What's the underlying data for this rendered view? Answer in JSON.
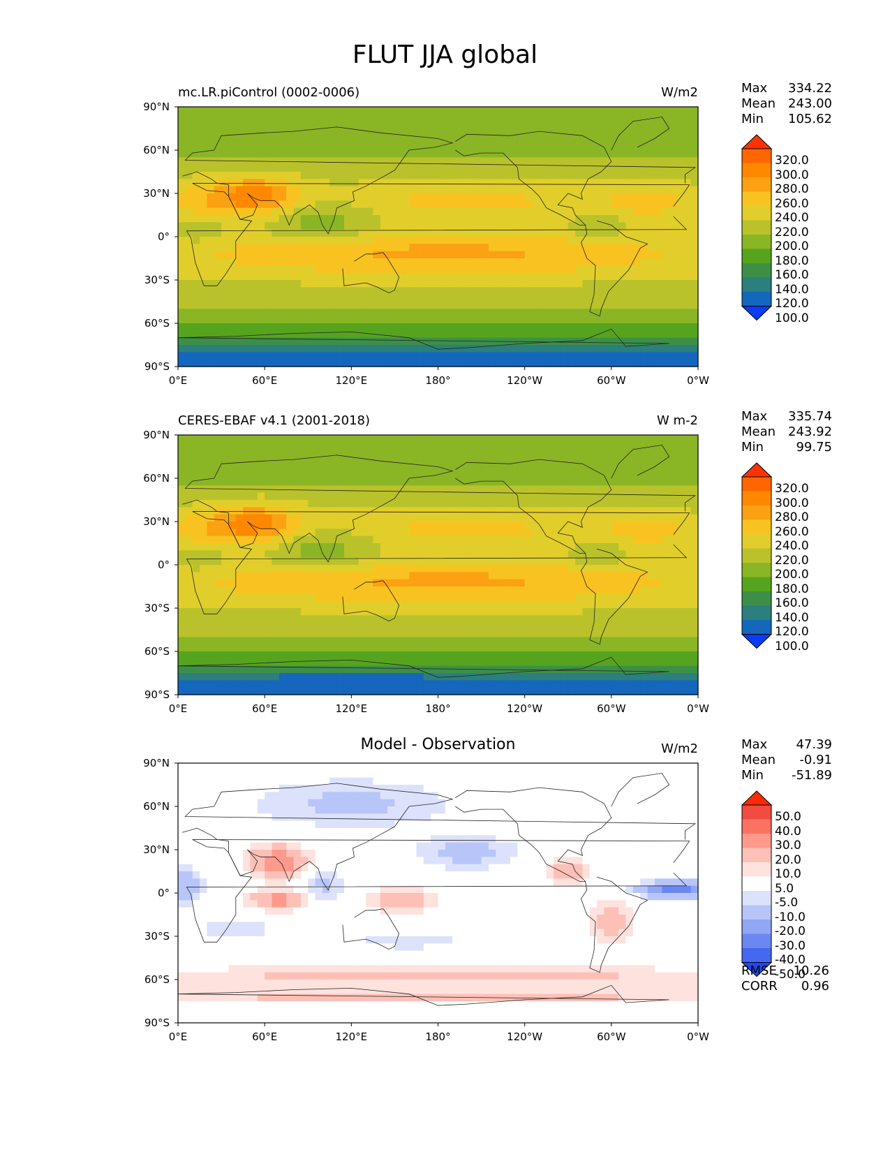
{
  "figure": {
    "title": "FLUT JJA global",
    "lat_ticks": [
      "90°N",
      "60°N",
      "30°N",
      "0°",
      "30°S",
      "60°S",
      "90°S"
    ],
    "lon_ticks": [
      "0°E",
      "60°E",
      "120°E",
      "180°",
      "120°W",
      "60°W",
      "0°W"
    ]
  },
  "panels": [
    {
      "title_left": "mc.LR.piControl (0002-0006)",
      "title_center": "",
      "units": "W/m2",
      "stats": {
        "max_label": "Max",
        "max": "334.22",
        "mean_label": "Mean",
        "mean": "243.00",
        "min_label": "Min",
        "min": "105.62"
      },
      "colorbar": {
        "levels": [
          "320.0",
          "300.0",
          "280.0",
          "260.0",
          "240.0",
          "220.0",
          "200.0",
          "180.0",
          "160.0",
          "140.0",
          "120.0",
          "100.0"
        ],
        "colors": [
          "#ff3300",
          "#ff6600",
          "#ff8800",
          "#fba112",
          "#f8c320",
          "#e1ce2a",
          "#b9c22a",
          "#8ab525",
          "#56a41e",
          "#3d8f48",
          "#2b7f7c",
          "#1467bd",
          "#0a3cf5"
        ]
      },
      "map_style": "model"
    },
    {
      "title_left": "CERES-EBAF v4.1 (2001-2018)",
      "title_center": "",
      "units": "W m-2",
      "stats": {
        "max_label": "Max",
        "max": "335.74",
        "mean_label": "Mean",
        "mean": "243.92",
        "min_label": "Min",
        "min": "99.75"
      },
      "colorbar": {
        "levels": [
          "320.0",
          "300.0",
          "280.0",
          "260.0",
          "240.0",
          "220.0",
          "200.0",
          "180.0",
          "160.0",
          "140.0",
          "120.0",
          "100.0"
        ],
        "colors": [
          "#ff3300",
          "#ff6600",
          "#ff8800",
          "#fba112",
          "#f8c320",
          "#e1ce2a",
          "#b9c22a",
          "#8ab525",
          "#56a41e",
          "#3d8f48",
          "#2b7f7c",
          "#1467bd",
          "#0a3cf5"
        ]
      },
      "map_style": "obs"
    },
    {
      "title_left": "",
      "title_center": "Model - Observation",
      "units": "W/m2",
      "stats": {
        "max_label": "Max",
        "max": "47.39",
        "mean_label": "Mean",
        "mean": "-0.91",
        "min_label": "Min",
        "min": "-51.89"
      },
      "colorbar": {
        "levels": [
          "50.0",
          "40.0",
          "30.0",
          "20.0",
          "10.0",
          "5.0",
          "-5.0",
          "-10.0",
          "-20.0",
          "-30.0",
          "-40.0",
          "-50.0"
        ],
        "colors": [
          "#ff2a00",
          "#f24b3f",
          "#fb7262",
          "#fd9a8c",
          "#fdc0b7",
          "#fde2dd",
          "#ffffff",
          "#dce2fb",
          "#b8c5f9",
          "#92a6f6",
          "#6c87f2",
          "#4468ef",
          "#1c48ff"
        ]
      },
      "metrics": {
        "rmse_label": "RMSE",
        "rmse": "10.26",
        "corr_label": "CORR",
        "corr": "0.96"
      },
      "map_style": "diff"
    }
  ]
}
